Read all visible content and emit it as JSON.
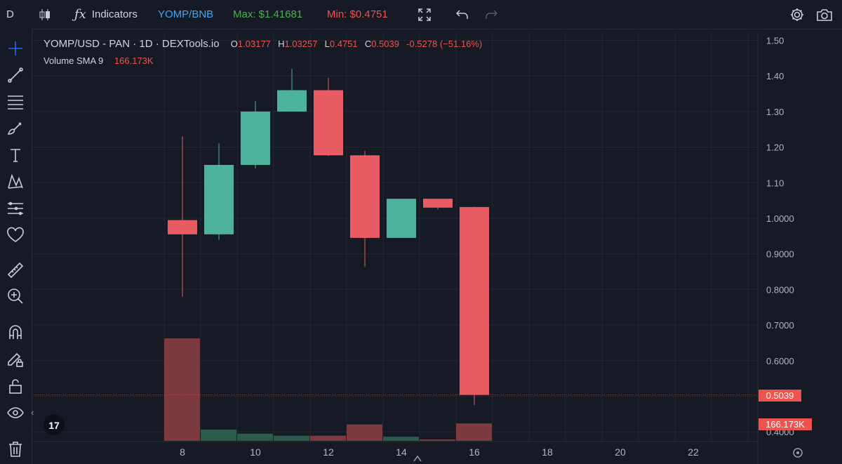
{
  "toolbar": {
    "interval": "D",
    "indicators_label": "Indicators",
    "compare_symbol": "YOMP/BNB",
    "max_label": "Max: $1.41681",
    "min_label": "Min: $0.4751",
    "icons": [
      "candles-icon",
      "function-icon",
      "fullscreen-icon",
      "undo-icon",
      "redo-icon",
      "gear-icon",
      "camera-icon"
    ]
  },
  "sidebar": {
    "tools": [
      "crosshair-icon",
      "trendline-icon",
      "horizontal-lines-icon",
      "brush-icon",
      "text-icon",
      "pattern-icon",
      "measure-lines-icon",
      "heart-icon",
      "ruler-icon",
      "zoom-in-icon",
      "magnet-icon",
      "lock-pencil-icon",
      "unlock-icon",
      "eye-icon",
      "trash-icon"
    ],
    "collapse_glyph": "‹"
  },
  "legend": {
    "title": "YOMP/USD - PAN · 1D · DEXTools.io",
    "o_label": "O",
    "o_value": "1.03177",
    "h_label": "H",
    "h_value": "1.03257",
    "l_label": "L",
    "l_value": "0.4751",
    "c_label": "C",
    "c_value": "0.5039",
    "change": "-0.5278 (−51.16%)",
    "volume_label": "Volume SMA 9",
    "volume_value": "166.173K"
  },
  "price_label": "0.5039",
  "volume_label_box": "166.173K",
  "logo_text": "17",
  "colors": {
    "up": "#4db39a",
    "down": "#e85d63",
    "vol_up": "#2c5a4f",
    "vol_down": "#7b3a3e",
    "bg": "#161a25",
    "grid": "#222633"
  },
  "chart_data": {
    "type": "candlestick",
    "x_ticks": [
      "8",
      "10",
      "12",
      "14",
      "16",
      "18",
      "20",
      "22"
    ],
    "y_ticks": [
      "1.50",
      "1.40",
      "1.30",
      "1.20",
      "1.10",
      "1.0000",
      "0.9000",
      "0.8000",
      "0.7000",
      "0.6000",
      "0.5000",
      "0.4000"
    ],
    "ylim": [
      0.38,
      1.52
    ],
    "candles": [
      {
        "day": 8,
        "open": 0.995,
        "high": 1.23,
        "low": 0.78,
        "close": 0.955
      },
      {
        "day": 9,
        "open": 0.955,
        "high": 1.21,
        "low": 0.94,
        "close": 1.15
      },
      {
        "day": 10,
        "open": 1.15,
        "high": 1.33,
        "low": 1.14,
        "close": 1.3
      },
      {
        "day": 11,
        "open": 1.3,
        "high": 1.42,
        "low": 1.3,
        "close": 1.36
      },
      {
        "day": 12,
        "open": 1.36,
        "high": 1.395,
        "low": 1.175,
        "close": 1.177
      },
      {
        "day": 13,
        "open": 1.177,
        "high": 1.19,
        "low": 0.865,
        "close": 0.945
      },
      {
        "day": 14,
        "open": 0.945,
        "high": 1.055,
        "low": 0.945,
        "close": 1.055
      },
      {
        "day": 15,
        "open": 1.055,
        "high": 1.055,
        "low": 1.025,
        "close": 1.03
      },
      {
        "day": 16,
        "open": 1.03177,
        "high": 1.03257,
        "low": 0.4751,
        "close": 0.5039
      }
    ],
    "volume": [
      {
        "day": 8,
        "value": 1.0,
        "dir": "down"
      },
      {
        "day": 9,
        "value": 0.11,
        "dir": "up"
      },
      {
        "day": 10,
        "value": 0.07,
        "dir": "up"
      },
      {
        "day": 11,
        "value": 0.05,
        "dir": "up"
      },
      {
        "day": 12,
        "value": 0.05,
        "dir": "down"
      },
      {
        "day": 13,
        "value": 0.16,
        "dir": "down"
      },
      {
        "day": 14,
        "value": 0.04,
        "dir": "up"
      },
      {
        "day": 15,
        "value": 0.01,
        "dir": "down"
      },
      {
        "day": 16,
        "value": 0.17,
        "dir": "down"
      }
    ]
  }
}
